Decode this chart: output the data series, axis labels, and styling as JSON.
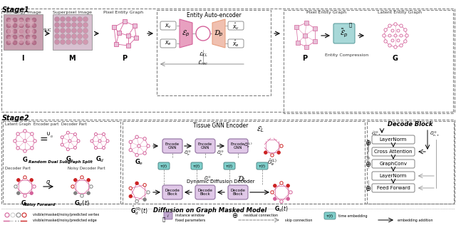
{
  "title": "",
  "bg_color": "#ffffff",
  "stage1_label": "Stage1",
  "stage2_label": "Stage2",
  "pink": "#d4619a",
  "light_pink": "#e8a0c8",
  "dark_pink": "#b03080",
  "red": "#cc2222",
  "purple_box": "#c9a8d4",
  "teal_box": "#7ececa",
  "gray_box": "#d0d0d0",
  "light_purple": "#e0c8e8",
  "salmon": "#e8a080",
  "legend_items": [
    "visible/masked/noisy/predicted vertex",
    "visible/masked/noisy/predicted edge",
    "instance window",
    "fixed parameters",
    "residual connection",
    "skip connection",
    "time embedding",
    "embedding addition"
  ]
}
